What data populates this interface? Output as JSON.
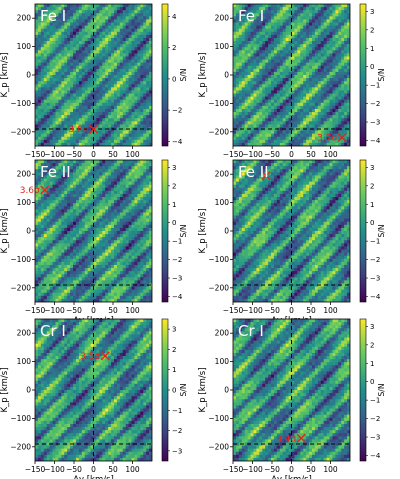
{
  "chart_data": [
    {
      "type": "heatmap",
      "title": "Fe I",
      "xlabel": "Δv [km/s]",
      "ylabel": "K_p [km/s]",
      "colorbar_label": "S/N",
      "xlim": [
        -150,
        150
      ],
      "ylim": [
        -250,
        250
      ],
      "xticks": [
        -150,
        -100,
        -50,
        0,
        50,
        100
      ],
      "yticks": [
        -200,
        -100,
        0,
        100,
        200
      ],
      "colorbar_range": [
        -4.3,
        4.8
      ],
      "colorbar_ticks": [
        -4,
        -2,
        0,
        2,
        4
      ],
      "guide_lines": {
        "dv": 0,
        "kp": -190
      },
      "marker": {
        "dv": 0,
        "kp": -190,
        "label": "3.8σ"
      },
      "pattern_seed": 11
    },
    {
      "type": "heatmap",
      "title": "Fe I",
      "xlabel": "Δv [km/s]",
      "ylabel": "K_p [km/s]",
      "colorbar_label": "S/N",
      "xlim": [
        -150,
        150
      ],
      "ylim": [
        -250,
        250
      ],
      "xticks": [
        -150,
        -100,
        -50,
        0,
        50,
        100
      ],
      "yticks": [
        -200,
        -100,
        0,
        100,
        200
      ],
      "colorbar_range": [
        -4.3,
        3.4
      ],
      "colorbar_ticks": [
        -4,
        -3,
        -2,
        -1,
        0,
        1,
        2,
        3
      ],
      "guide_lines": {
        "dv": 0,
        "kp": -190
      },
      "marker": {
        "dv": 130,
        "kp": -220,
        "label": "3.7σ"
      },
      "pattern_seed": 23
    },
    {
      "type": "heatmap",
      "title": "Fe II",
      "xlabel": "Δv [km/s]",
      "ylabel": "K_p [km/s]",
      "colorbar_label": "S/N",
      "xlim": [
        -150,
        150
      ],
      "ylim": [
        -250,
        250
      ],
      "xticks": [
        -150,
        -100,
        -50,
        0,
        50,
        100
      ],
      "yticks": [
        -200,
        -100,
        0,
        100,
        200
      ],
      "colorbar_range": [
        -4.3,
        3.4
      ],
      "colorbar_ticks": [
        -4,
        -3,
        -2,
        -1,
        0,
        1,
        2,
        3
      ],
      "guide_lines": {
        "dv": 0,
        "kp": -190
      },
      "marker": {
        "dv": -125,
        "kp": 145,
        "label": "3.6σ"
      },
      "pattern_seed": 37
    },
    {
      "type": "heatmap",
      "title": "Fe II",
      "xlabel": "Δv [km/s]",
      "ylabel": "K_p [km/s]",
      "colorbar_label": "S/N",
      "xlim": [
        -150,
        150
      ],
      "ylim": [
        -250,
        250
      ],
      "xticks": [
        -150,
        -100,
        -50,
        0,
        50,
        100
      ],
      "yticks": [
        -200,
        -100,
        0,
        100,
        200
      ],
      "colorbar_range": [
        -4.3,
        3.4
      ],
      "colorbar_ticks": [
        -4,
        -3,
        -2,
        -1,
        0,
        1,
        2,
        3
      ],
      "guide_lines": {
        "dv": 0,
        "kp": -190
      },
      "marker": {
        "dv": -65,
        "kp": 195,
        "label": ""
      },
      "pattern_seed": 41
    },
    {
      "type": "heatmap",
      "title": "Cr I",
      "xlabel": "Δv [km/s]",
      "ylabel": "K_p [km/s]",
      "colorbar_label": "S/N",
      "xlim": [
        -150,
        150
      ],
      "ylim": [
        -250,
        250
      ],
      "xticks": [
        -150,
        -100,
        -50,
        0,
        50,
        100
      ],
      "yticks": [
        -200,
        -100,
        0,
        100,
        200
      ],
      "colorbar_range": [
        -3.5,
        3.5
      ],
      "colorbar_ticks": [
        -3,
        -2,
        -1,
        0,
        1,
        2,
        3
      ],
      "guide_lines": {
        "dv": 0,
        "kp": -190
      },
      "marker": {
        "dv": 30,
        "kp": 120,
        "label": "3.5σ"
      },
      "pattern_seed": 53
    },
    {
      "type": "heatmap",
      "title": "Cr I",
      "xlabel": "Δv [km/s]",
      "ylabel": "K_p [km/s]",
      "colorbar_label": "S/N",
      "xlim": [
        -150,
        150
      ],
      "ylim": [
        -250,
        250
      ],
      "xticks": [
        -150,
        -100,
        -50,
        0,
        50,
        100
      ],
      "yticks": [
        -200,
        -100,
        0,
        100,
        200
      ],
      "colorbar_range": [
        -4.3,
        3.4
      ],
      "colorbar_ticks": [
        -4,
        -3,
        -2,
        -1,
        0,
        1,
        2,
        3
      ],
      "guide_lines": {
        "dv": 0,
        "kp": -190
      },
      "marker": {
        "dv": 25,
        "kp": -170,
        "label": "3.4σ"
      },
      "pattern_seed": 67
    }
  ],
  "colors": {
    "marker": "#e8221c",
    "guide_line": "#000000",
    "title_text": "#ffffff",
    "colormap": [
      "#440154",
      "#3b528b",
      "#21918c",
      "#5ec962",
      "#fde725"
    ]
  }
}
